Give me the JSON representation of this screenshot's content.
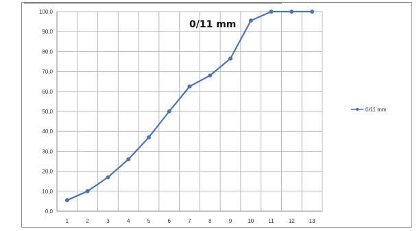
{
  "chart_data": {
    "type": "line",
    "x": [
      1,
      2,
      3,
      4,
      5,
      6,
      7,
      8,
      9,
      10,
      11,
      12,
      13
    ],
    "series": [
      {
        "name": "0/11 mm",
        "values": [
          5.5,
          10.0,
          17.0,
          26.0,
          37.0,
          50.0,
          62.5,
          68.0,
          76.5,
          95.5,
          100.0,
          100.0,
          100.0
        ],
        "color": "#4a76b8"
      }
    ],
    "ylim": [
      0,
      100
    ],
    "ytick_labels": [
      "0,0",
      "10,0",
      "20,0",
      "30,0",
      "40,0",
      "50,0",
      "60,0",
      "70,0",
      "80,0",
      "90,0",
      "100,0"
    ],
    "xtick_labels": [
      "1",
      "2",
      "3",
      "4",
      "5",
      "6",
      "7",
      "8",
      "9",
      "10",
      "11",
      "12",
      "13"
    ],
    "annotation": "0/11 mm",
    "legend": {
      "position": "right",
      "label": "0/11 mm"
    },
    "grid": true
  }
}
